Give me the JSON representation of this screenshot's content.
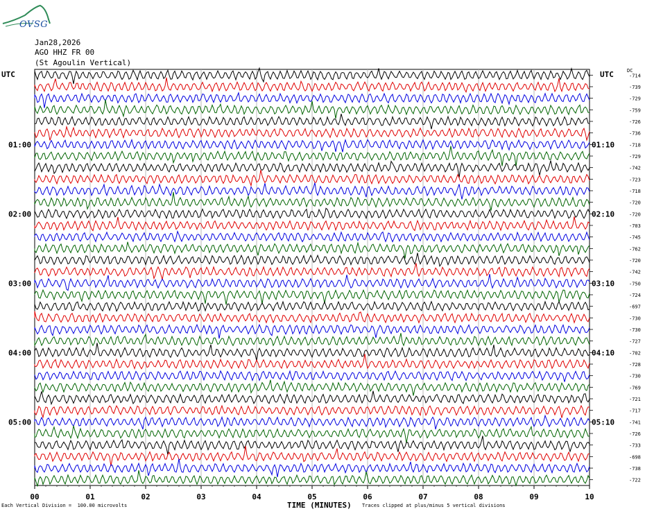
{
  "logo": {
    "text": "OVSG",
    "mountain_color": "#2e8b57",
    "text_color": "#1a4fa0"
  },
  "header": {
    "date": "Jan28,2026",
    "station": "AGO HHZ FR 00",
    "name": "(St Agoulin Vertical)"
  },
  "utc_left": "UTC",
  "utc_right": "UTC",
  "dc_label": "DC",
  "footer": {
    "left": "Each Vertical Division =  100.00 microvolts",
    "center": "TIME (MINUTES)",
    "right": "Traces clipped at plus/minus 5 vertical divisions"
  },
  "colors": [
    "#000000",
    "#e00000",
    "#0000e0",
    "#006400"
  ],
  "chart_data": {
    "type": "line",
    "title": "",
    "xlabel": "TIME (MINUTES)",
    "ylabel": "",
    "xlim": [
      0,
      10
    ],
    "x_ticks": [
      "00",
      "01",
      "02",
      "03",
      "04",
      "05",
      "06",
      "07",
      "08",
      "09",
      "10"
    ],
    "grid": true,
    "left_time_labels": [
      {
        "row": 6,
        "label": "01:00"
      },
      {
        "row": 12,
        "label": "02:00"
      },
      {
        "row": 18,
        "label": "03:00"
      },
      {
        "row": 24,
        "label": "04:00"
      },
      {
        "row": 30,
        "label": "05:00"
      }
    ],
    "right_time_labels": [
      {
        "row": 6,
        "label": "01:10"
      },
      {
        "row": 12,
        "label": "02:10"
      },
      {
        "row": 18,
        "label": "03:10"
      },
      {
        "row": 24,
        "label": "04:10"
      },
      {
        "row": 30,
        "label": "05:10"
      }
    ],
    "dc_offsets": [
      "-714",
      "-739",
      "-729",
      "-759",
      "-726",
      "-736",
      "-718",
      "-729",
      "-742",
      "-723",
      "-718",
      "-720",
      "-720",
      "-703",
      "-745",
      "-762",
      "-720",
      "-742",
      "-750",
      "-724",
      "-697",
      "-730",
      "-730",
      "-727",
      "-702",
      "-728",
      "-730",
      "-769",
      "-721",
      "-717",
      "-741",
      "-726",
      "-733",
      "-698",
      "-738",
      "-722"
    ],
    "series_count": 36
  }
}
